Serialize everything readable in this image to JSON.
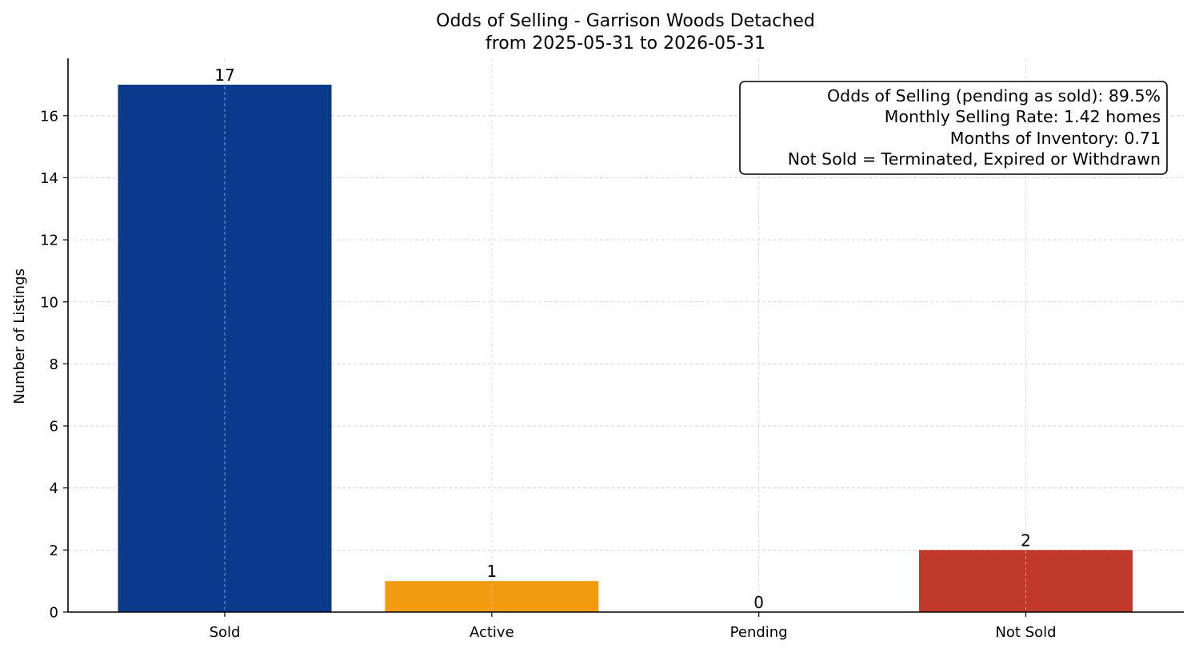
{
  "chart_data": {
    "type": "bar",
    "title": "Odds of Selling - Garrison Woods Detached",
    "subtitle": "from 2025-05-31 to 2026-05-31",
    "xlabel": "",
    "ylabel": "Number of Listings",
    "categories": [
      "Sold",
      "Active",
      "Pending",
      "Not Sold"
    ],
    "values": [
      17,
      1,
      0,
      2
    ],
    "data_labels": [
      "17",
      "1",
      "0",
      "2"
    ],
    "colors": [
      "#0b3a8d",
      "#f39c12",
      "#7f7f7f",
      "#c0392b"
    ],
    "ylim": [
      0,
      17.85
    ],
    "yticks": [
      0,
      2,
      4,
      6,
      8,
      10,
      12,
      14,
      16
    ],
    "grid": true,
    "annotation": {
      "placement": "top-right",
      "lines": [
        "Odds of Selling (pending as sold): 89.5%",
        "Monthly Selling Rate: 1.42 homes",
        "Months of Inventory: 0.71",
        "Not Sold = Terminated, Expired or Withdrawn"
      ]
    }
  }
}
